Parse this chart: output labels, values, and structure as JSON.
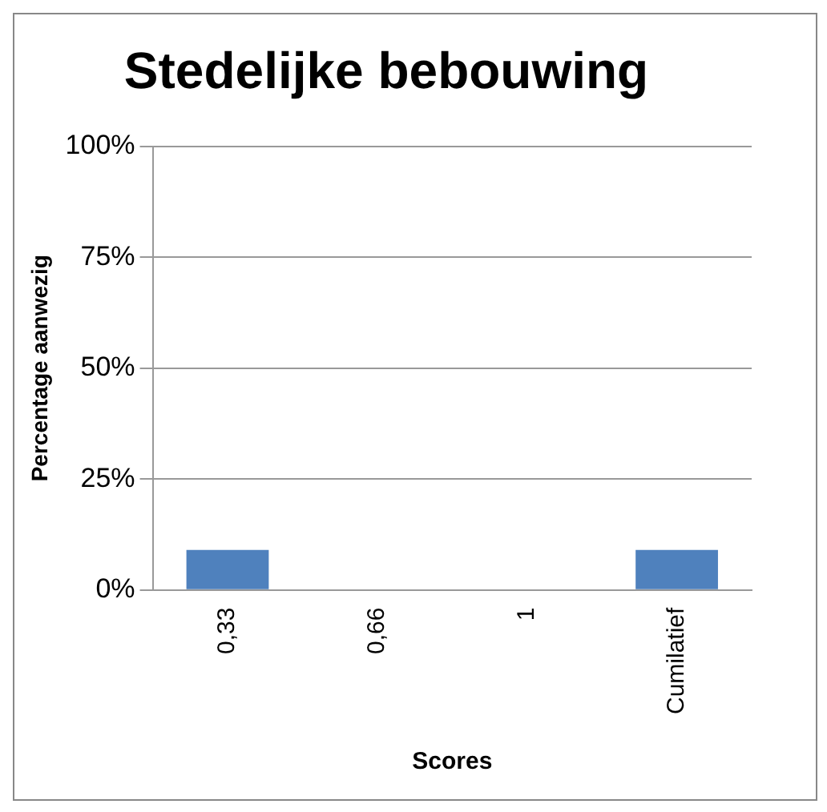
{
  "chart_data": {
    "type": "bar",
    "title": "Stedelijke bebouwing",
    "xlabel": "Scores",
    "ylabel": "Percentage aanwezig",
    "categories": [
      "0,33",
      "0,66",
      "1",
      "Cumilatief"
    ],
    "values": [
      9,
      0,
      0,
      9
    ],
    "color": "#4f81bd",
    "ylim": [
      0,
      100
    ],
    "yticks": [
      {
        "value": 0,
        "label": "0%"
      },
      {
        "value": 25,
        "label": "25%"
      },
      {
        "value": 50,
        "label": "50%"
      },
      {
        "value": 75,
        "label": "75%"
      },
      {
        "value": 100,
        "label": "100%"
      }
    ],
    "grid": "y",
    "legend": false
  }
}
